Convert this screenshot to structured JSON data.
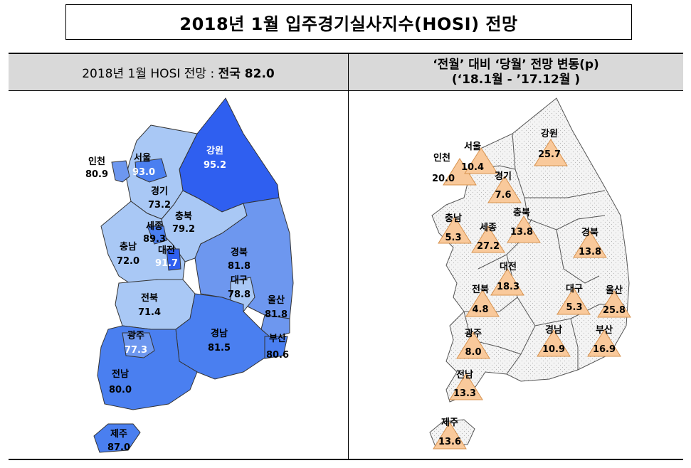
{
  "title": "2018년  1월  입주경기실사지수(HOSI)  전망",
  "left_header": {
    "prefix": "2018년  1월  HOSI  전망  :",
    "highlight": "전국  82.0"
  },
  "right_header": {
    "line1": "‘전월’ 대비 ‘당월’ 전망 변동(p)",
    "line2": "(‘18.1월  -  ’17.12월  )"
  },
  "colors": {
    "darkest": "#2f5ff0",
    "dark": "#4a7ff0",
    "medium": "#6d97ef",
    "light": "#a9c8f5",
    "change_triangle": "#f9c99b",
    "change_map_fill": "#f2f2f2"
  },
  "map_left": {
    "regions": [
      {
        "name": "인천",
        "value": "80.9"
      },
      {
        "name": "서울",
        "value": "93.0"
      },
      {
        "name": "강원",
        "value": "95.2"
      },
      {
        "name": "경기",
        "value": "73.2"
      },
      {
        "name": "충북",
        "value": "79.2"
      },
      {
        "name": "세종",
        "value": "89.3"
      },
      {
        "name": "충남",
        "value": "72.0"
      },
      {
        "name": "대전",
        "value": "91.7"
      },
      {
        "name": "경북",
        "value": "81.8"
      },
      {
        "name": "대구",
        "value": "78.8"
      },
      {
        "name": "울산",
        "value": "81.8"
      },
      {
        "name": "전북",
        "value": "71.4"
      },
      {
        "name": "광주",
        "value": "77.3"
      },
      {
        "name": "경남",
        "value": "81.5"
      },
      {
        "name": "부산",
        "value": "80.6"
      },
      {
        "name": "전남",
        "value": "80.0"
      },
      {
        "name": "제주",
        "value": "87.0"
      }
    ]
  },
  "map_right": {
    "regions": [
      {
        "name": "인천",
        "value": "20.0"
      },
      {
        "name": "서울",
        "value": "10.4"
      },
      {
        "name": "강원",
        "value": "25.7"
      },
      {
        "name": "경기",
        "value": "7.6"
      },
      {
        "name": "충북",
        "value": "13.8"
      },
      {
        "name": "충남",
        "value": "5.3"
      },
      {
        "name": "세종",
        "value": "27.2"
      },
      {
        "name": "경북",
        "value": "13.8"
      },
      {
        "name": "대전",
        "value": "18.3"
      },
      {
        "name": "대구",
        "value": "5.3"
      },
      {
        "name": "울산",
        "value": "25.8"
      },
      {
        "name": "전북",
        "value": "4.8"
      },
      {
        "name": "광주",
        "value": "8.0"
      },
      {
        "name": "경남",
        "value": "10.9"
      },
      {
        "name": "부산",
        "value": "16.9"
      },
      {
        "name": "전남",
        "value": "13.3"
      },
      {
        "name": "제주",
        "value": "13.6"
      }
    ]
  }
}
